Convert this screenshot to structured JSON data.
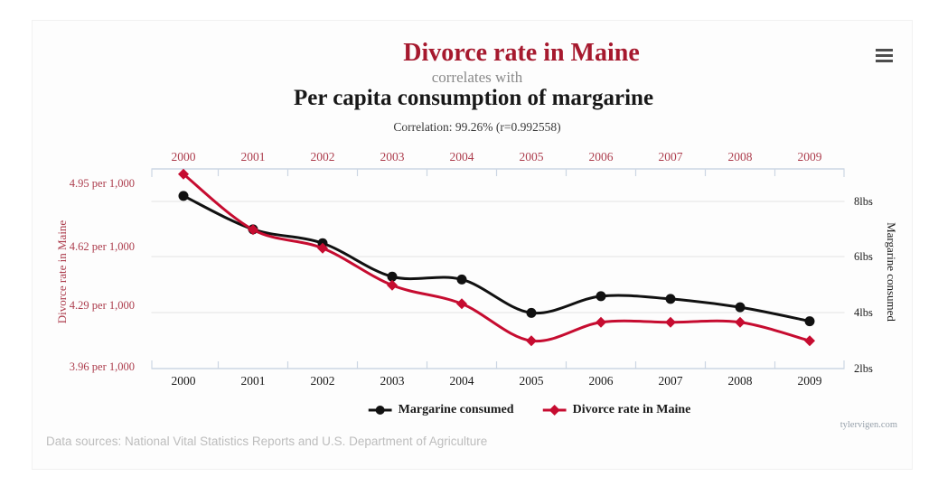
{
  "header": {
    "title": "Divorce rate in Maine",
    "connector": "correlates with",
    "subtitle": "Per capita consumption of margarine",
    "correlation": "Correlation: 99.26% (r=0.992558)",
    "correlation_percent": "99.26%",
    "r_value": "0.992558"
  },
  "chart_data": {
    "type": "line",
    "x": [
      2000,
      2001,
      2002,
      2003,
      2004,
      2005,
      2006,
      2007,
      2008,
      2009
    ],
    "series": [
      {
        "name": "Margarine consumed",
        "axis": "right",
        "color": "#111111",
        "marker": "circle",
        "unit": "lbs",
        "values": [
          8.2,
          7.0,
          6.5,
          5.3,
          5.2,
          4.0,
          4.6,
          4.5,
          4.2,
          3.7
        ]
      },
      {
        "name": "Divorce rate in Maine",
        "axis": "left",
        "color": "#c60c30",
        "marker": "diamond",
        "unit": "per 1,000",
        "values": [
          5.0,
          4.7,
          4.6,
          4.4,
          4.3,
          4.1,
          4.2,
          4.2,
          4.2,
          4.1
        ]
      }
    ],
    "left_axis": {
      "label": "Divorce rate in Maine",
      "tick_labels": [
        "4.95 per 1,000",
        "4.62 per 1,000",
        "4.29 per 1,000",
        "3.96 per 1,000"
      ],
      "tick_values": [
        4.95,
        4.62,
        4.29,
        3.96
      ],
      "range": [
        3.96,
        4.95
      ]
    },
    "right_axis": {
      "label": "Margarine consumed",
      "tick_labels": [
        "8lbs",
        "6lbs",
        "4lbs",
        "2lbs"
      ],
      "tick_values": [
        8,
        6,
        4,
        2
      ],
      "range": [
        2,
        8
      ]
    },
    "x_axis": {
      "labels_shown": "top_and_bottom"
    },
    "grid": true,
    "legend_position": "bottom"
  },
  "footer": {
    "data_sources": "Data sources: National Vital Statistics Reports and U.S. Department of Agriculture",
    "watermark": "tylervigen.com"
  },
  "colors": {
    "accent_red": "#a6192e",
    "axis_red": "#ad3e4e",
    "line_red": "#c60c30",
    "line_black": "#111111",
    "axis_line": "#ccd6e3",
    "gridline": "#e3e3e3",
    "muted_text": "#8a8a8a",
    "footer_text": "#bdbdbd"
  }
}
